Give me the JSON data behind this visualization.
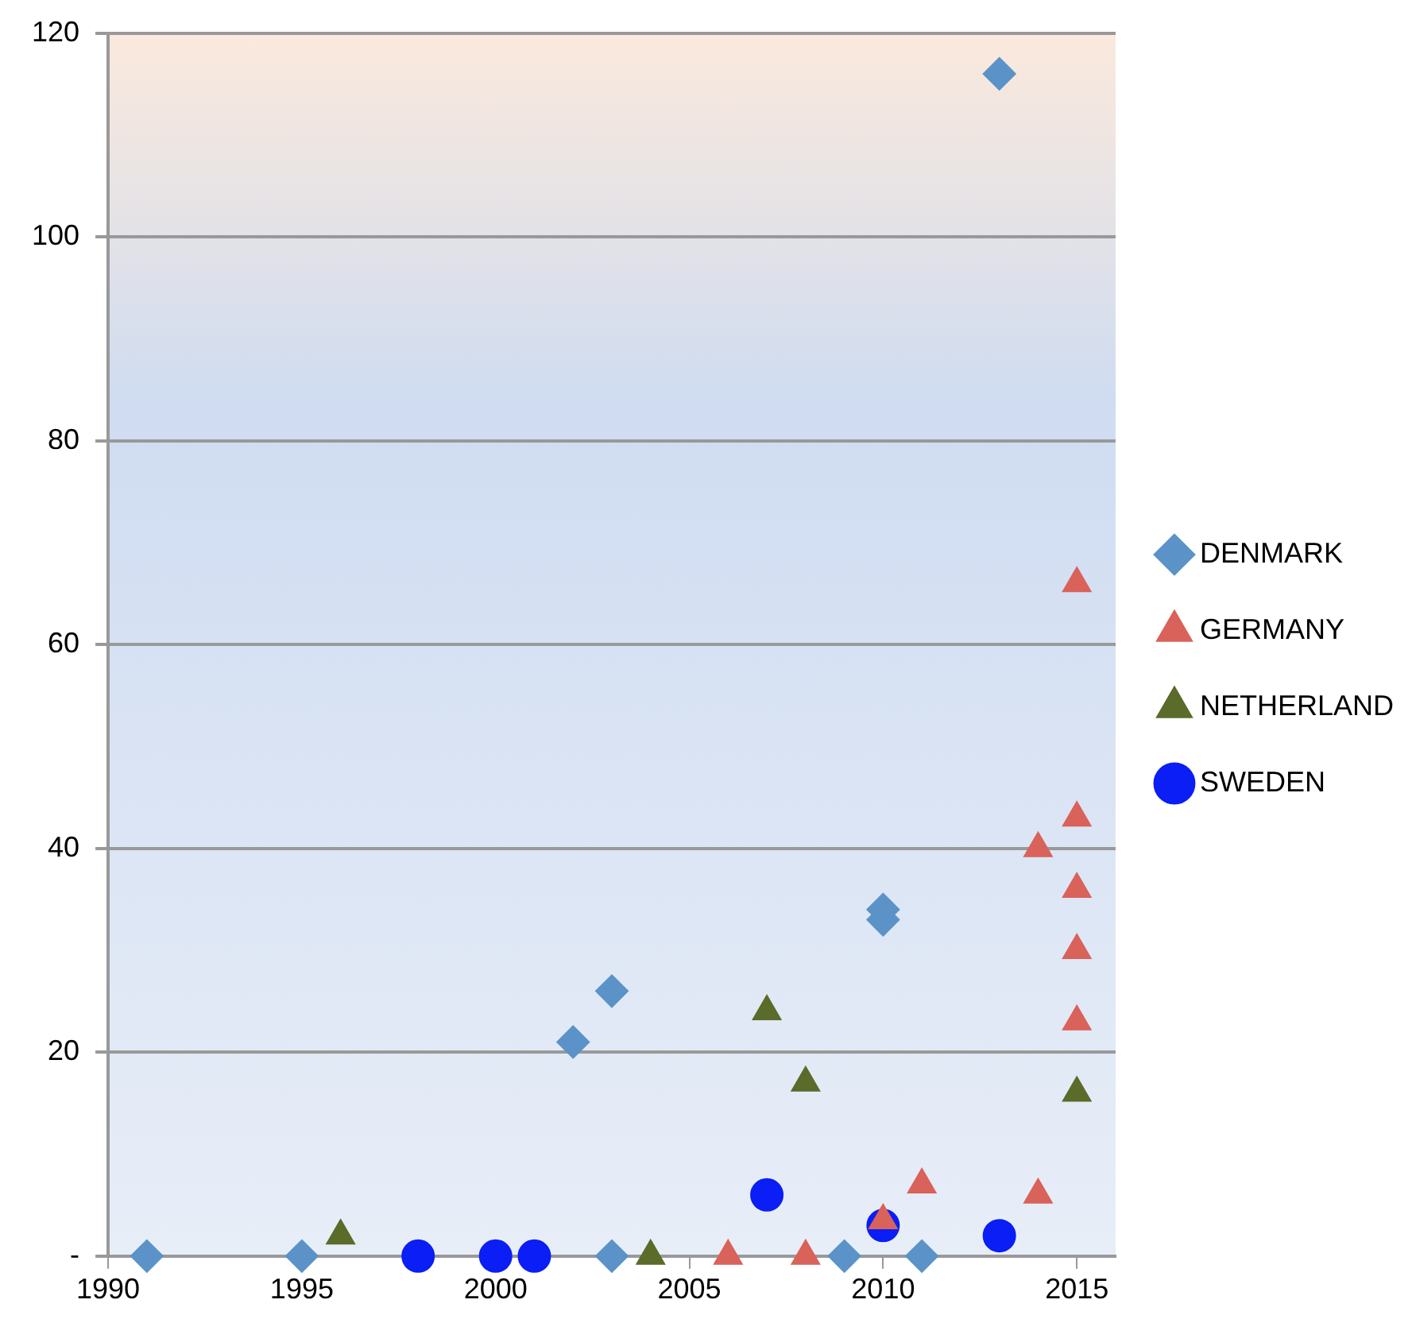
{
  "chart_data": {
    "type": "scatter",
    "xlim": [
      1990,
      2016
    ],
    "xticks": [
      1990,
      1995,
      2000,
      2005,
      2010,
      2015
    ],
    "ylim": [
      0,
      120
    ],
    "yticks": [
      {
        "value": 0,
        "label": "-"
      },
      20,
      40,
      60,
      80,
      100,
      120
    ],
    "grid": "y",
    "legend": "right",
    "series": [
      {
        "name": "DENMARK",
        "color": "#5b93c8",
        "marker": "diamond",
        "x": [
          1991,
          1995,
          2002,
          2003,
          2003,
          2009,
          2010,
          2010,
          2011,
          2013
        ],
        "values": [
          0,
          0,
          21,
          26,
          0,
          0,
          34,
          33,
          0,
          116
        ]
      },
      {
        "name": "GERMANY",
        "color": "#d9625a",
        "marker": "triangle",
        "x": [
          2006,
          2008,
          2010,
          2011,
          2014,
          2014,
          2015,
          2015,
          2015,
          2015,
          2015
        ],
        "values": [
          0,
          0,
          3.5,
          7,
          6,
          40,
          66,
          43,
          36,
          30,
          23
        ]
      },
      {
        "name": "NETHERLAND",
        "color": "#5a6b2a",
        "marker": "triangle",
        "x": [
          1996,
          2004,
          2007,
          2008,
          2015
        ],
        "values": [
          2,
          0,
          24,
          17,
          16
        ]
      },
      {
        "name": "SWEDEN",
        "color": "#0a1ef5",
        "marker": "circle",
        "x": [
          1998,
          2000,
          2001,
          2007,
          2010,
          2013
        ],
        "values": [
          0,
          0,
          0,
          6,
          3,
          2
        ]
      }
    ]
  }
}
